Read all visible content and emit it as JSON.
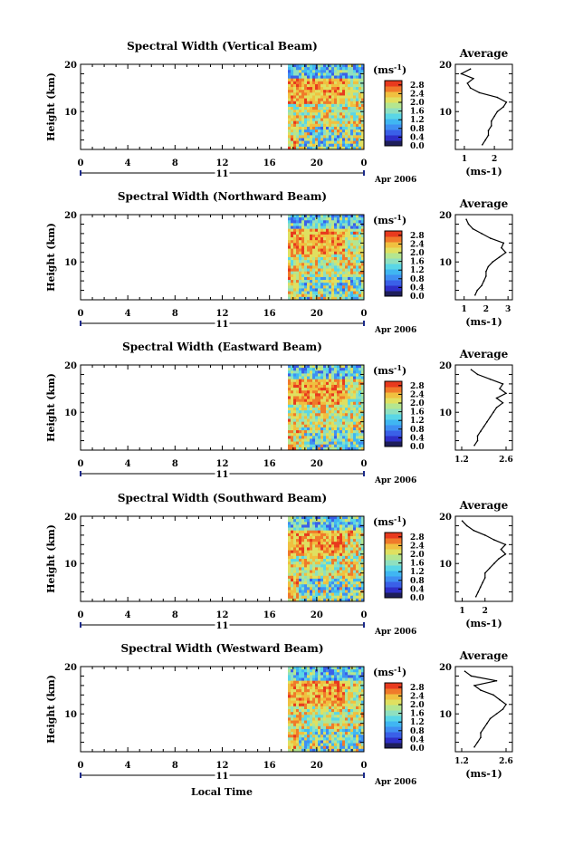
{
  "figure": {
    "xlabel_bottom": "Local Time",
    "date_label": "Apr 2006",
    "day_label": "11",
    "colorbar_unit": "(ms",
    "colorbar_unit_sup": "-1",
    "colorbar_unit_close": ")",
    "ylabel": "Height (km)",
    "avg_title": "Average",
    "colors": {
      "cb": [
        "#1e1e5a",
        "#2f2fc8",
        "#3a60e8",
        "#3f8ff2",
        "#40b6f2",
        "#5ad6e6",
        "#8fe0c0",
        "#b4e690",
        "#e0e060",
        "#f0c040",
        "#f07a2a",
        "#e83a1e"
      ]
    }
  },
  "chart_data": [
    {
      "type": "heatmap",
      "title": "Spectral Width (Vertical Beam)",
      "x_ticks": [
        "0",
        "4",
        "8",
        "12",
        "16",
        "20",
        "0"
      ],
      "xlim": [
        0,
        24
      ],
      "y_ticks": [
        "10",
        "20"
      ],
      "ylim": [
        2,
        20
      ],
      "data_x_range": [
        17.5,
        24
      ],
      "colorbar_ticks": [
        "2.8",
        "2.4",
        "2.0",
        "1.6",
        "1.2",
        "0.8",
        "0.4",
        "0.0"
      ],
      "colorbar_range": [
        0,
        3.0
      ],
      "average": {
        "title": "Average",
        "xlabel": "(ms-1)",
        "x_ticks": [
          "1",
          "2"
        ],
        "xlim": [
          0.7,
          2.6
        ],
        "heights": [
          3,
          4,
          5,
          6,
          7,
          8,
          9,
          10,
          11,
          12,
          13,
          14,
          15,
          16,
          17,
          18,
          19
        ],
        "values": [
          1.6,
          1.7,
          1.8,
          1.8,
          1.9,
          1.9,
          2.0,
          2.1,
          2.3,
          2.4,
          2.1,
          1.5,
          1.2,
          1.1,
          1.3,
          0.9,
          1.2
        ]
      }
    },
    {
      "type": "heatmap",
      "title": "Spectral Width (Northward Beam)",
      "x_ticks": [
        "0",
        "4",
        "8",
        "12",
        "16",
        "20",
        "0"
      ],
      "xlim": [
        0,
        24
      ],
      "y_ticks": [
        "10",
        "20"
      ],
      "ylim": [
        2,
        20
      ],
      "data_x_range": [
        17.5,
        24
      ],
      "colorbar_ticks": [
        "2.8",
        "2.4",
        "2.0",
        "1.6",
        "1.2",
        "0.8",
        "0.4",
        "0.0"
      ],
      "colorbar_range": [
        0,
        3.0
      ],
      "average": {
        "title": "Average",
        "xlabel": "(ms-1)",
        "x_ticks": [
          "1",
          "2",
          "3"
        ],
        "xlim": [
          0.6,
          3.2
        ],
        "heights": [
          3,
          4,
          5,
          6,
          7,
          8,
          9,
          10,
          11,
          12,
          13,
          14,
          15,
          16,
          17,
          18,
          19
        ],
        "values": [
          1.5,
          1.6,
          1.8,
          1.9,
          2.0,
          2.0,
          2.1,
          2.3,
          2.6,
          2.9,
          2.7,
          2.8,
          2.2,
          1.8,
          1.4,
          1.2,
          1.1
        ]
      }
    },
    {
      "type": "heatmap",
      "title": "Spectral Width (Eastward Beam)",
      "x_ticks": [
        "0",
        "4",
        "8",
        "12",
        "16",
        "20",
        "0"
      ],
      "xlim": [
        0,
        24
      ],
      "y_ticks": [
        "10",
        "20"
      ],
      "ylim": [
        2,
        20
      ],
      "data_x_range": [
        17.5,
        24
      ],
      "colorbar_ticks": [
        "2.8",
        "2.4",
        "2.0",
        "1.6",
        "1.2",
        "0.8",
        "0.4",
        "0.0"
      ],
      "colorbar_range": [
        0,
        3.0
      ],
      "average": {
        "title": "Average",
        "xlabel": "",
        "x_ticks": [
          "1.2",
          "2.6"
        ],
        "xlim": [
          1.0,
          2.8
        ],
        "heights": [
          3,
          4,
          5,
          6,
          7,
          8,
          9,
          10,
          11,
          12,
          13,
          14,
          15,
          16,
          17,
          18,
          19
        ],
        "values": [
          1.6,
          1.7,
          1.7,
          1.8,
          1.9,
          2.0,
          2.1,
          2.2,
          2.3,
          2.5,
          2.3,
          2.6,
          2.4,
          2.5,
          2.1,
          1.7,
          1.5
        ]
      }
    },
    {
      "type": "heatmap",
      "title": "Spectral Width (Southward Beam)",
      "x_ticks": [
        "0",
        "4",
        "8",
        "12",
        "16",
        "20",
        "0"
      ],
      "xlim": [
        0,
        24
      ],
      "y_ticks": [
        "10",
        "20"
      ],
      "ylim": [
        2,
        20
      ],
      "data_x_range": [
        17.5,
        24
      ],
      "colorbar_ticks": [
        "2.8",
        "2.4",
        "2.0",
        "1.6",
        "1.2",
        "0.8",
        "0.4",
        "0.0"
      ],
      "colorbar_range": [
        0,
        3.0
      ],
      "average": {
        "title": "Average",
        "xlabel": "(ms-1)",
        "x_ticks": [
          "1",
          "2"
        ],
        "xlim": [
          0.7,
          3.2
        ],
        "heights": [
          3,
          4,
          5,
          6,
          7,
          8,
          9,
          10,
          11,
          12,
          13,
          14,
          15,
          16,
          17,
          18,
          19
        ],
        "values": [
          1.6,
          1.7,
          1.8,
          1.9,
          2.0,
          2.0,
          2.2,
          2.4,
          2.6,
          2.9,
          2.7,
          2.9,
          2.4,
          2.0,
          1.5,
          1.2,
          1.0
        ]
      }
    },
    {
      "type": "heatmap",
      "title": "Spectral Width (Westward Beam)",
      "x_ticks": [
        "0",
        "4",
        "8",
        "12",
        "16",
        "20",
        "0"
      ],
      "xlim": [
        0,
        24
      ],
      "y_ticks": [
        "10",
        "20"
      ],
      "ylim": [
        2,
        20
      ],
      "data_x_range": [
        17.5,
        24
      ],
      "colorbar_ticks": [
        "2.8",
        "2.4",
        "2.0",
        "1.6",
        "1.2",
        "0.8",
        "0.4",
        "0.0"
      ],
      "colorbar_range": [
        0,
        3.0
      ],
      "average": {
        "title": "Average",
        "xlabel": "(ms-1)",
        "x_ticks": [
          "1.2",
          "2.6"
        ],
        "xlim": [
          1.0,
          2.8
        ],
        "heights": [
          3,
          4,
          5,
          6,
          7,
          8,
          9,
          10,
          11,
          12,
          13,
          14,
          15,
          16,
          17,
          18,
          19
        ],
        "values": [
          1.6,
          1.7,
          1.8,
          1.8,
          1.9,
          2.0,
          2.1,
          2.3,
          2.5,
          2.6,
          2.4,
          2.2,
          1.8,
          1.6,
          2.3,
          1.5,
          1.3
        ]
      }
    }
  ]
}
